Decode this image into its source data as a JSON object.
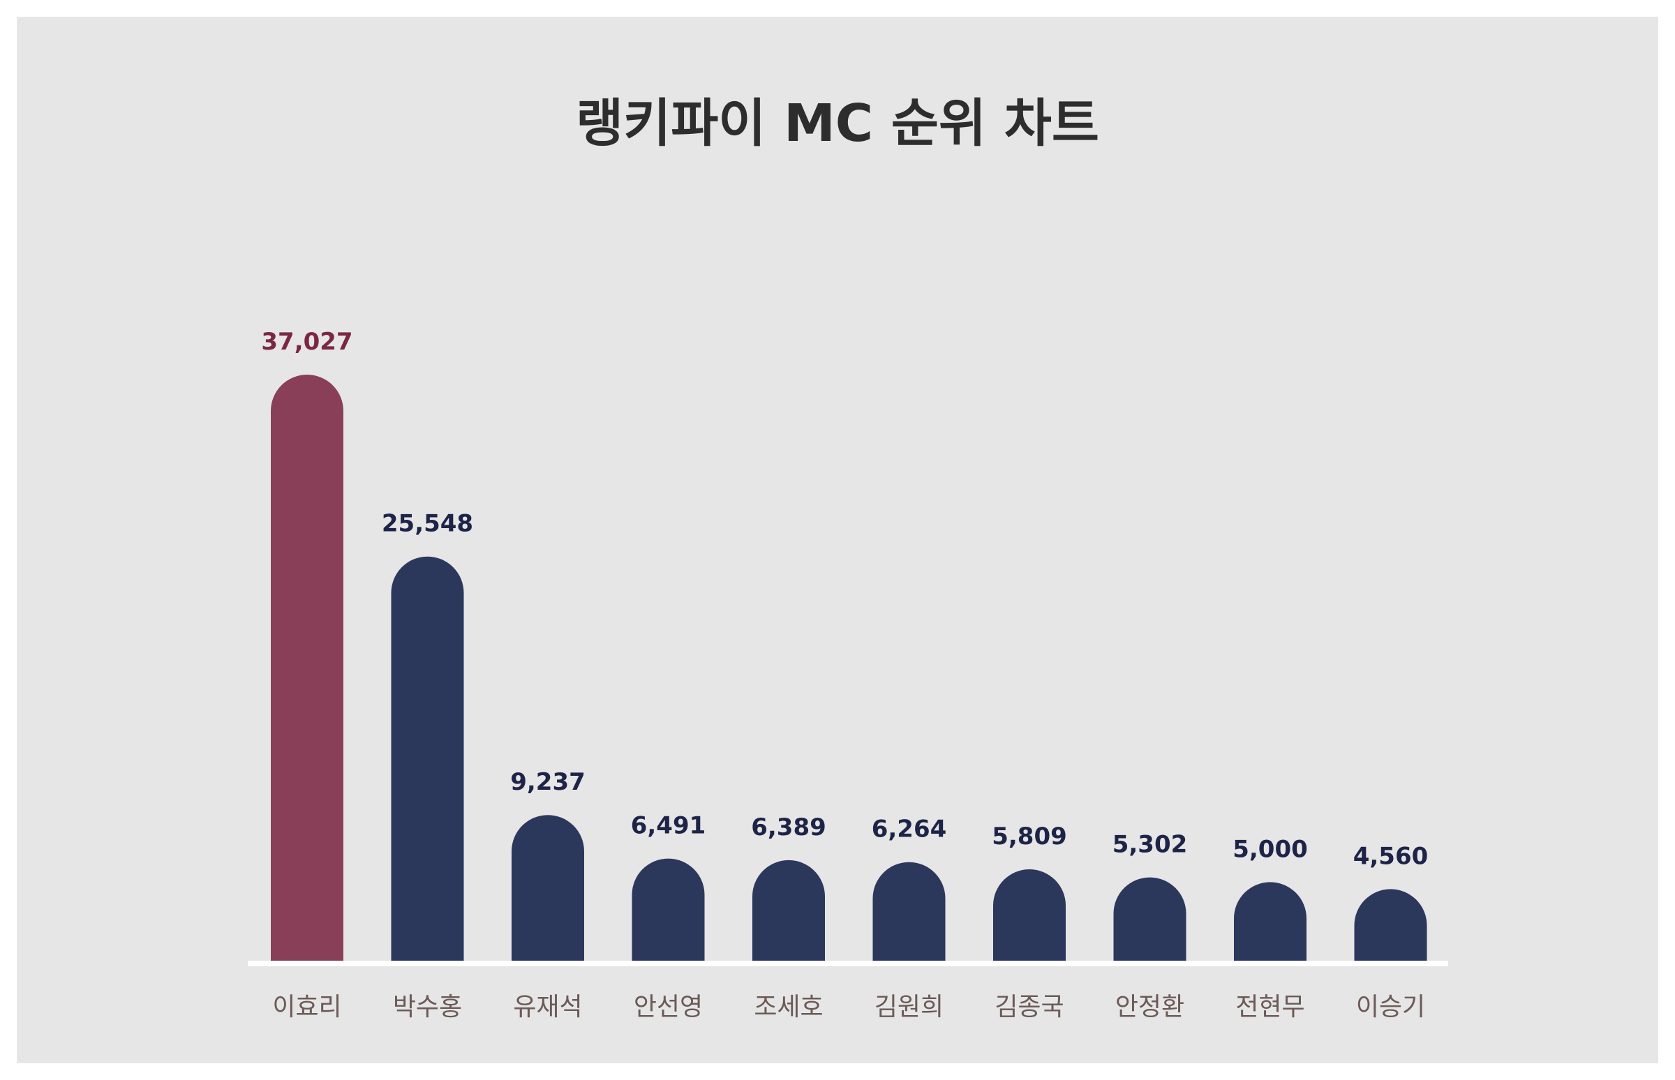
{
  "chart_data": {
    "type": "bar",
    "title": "랭키파이 MC 순위 차트",
    "categories": [
      "이효리",
      "박수홍",
      "유재석",
      "안선영",
      "조세호",
      "김원희",
      "김종국",
      "안정환",
      "전현무",
      "이승기"
    ],
    "values": [
      37027,
      25548,
      9237,
      6491,
      6389,
      6264,
      5809,
      5302,
      5000,
      4560
    ],
    "value_labels": [
      "37,027",
      "25,548",
      "9,237",
      "6,491",
      "6,389",
      "6,264",
      "5,809",
      "5,302",
      "5,000",
      "4,560"
    ],
    "highlight_index": 0,
    "grid": false,
    "legend": "none",
    "colors": {
      "background": "#e6e6e6",
      "highlight_bar": "#893f57",
      "bar": "#2c375c",
      "highlight_label": "#7a2744",
      "label": "#1d2447",
      "baseline": "#ffffff",
      "title": "#2d2d2d",
      "category": "#6b5a55"
    }
  }
}
